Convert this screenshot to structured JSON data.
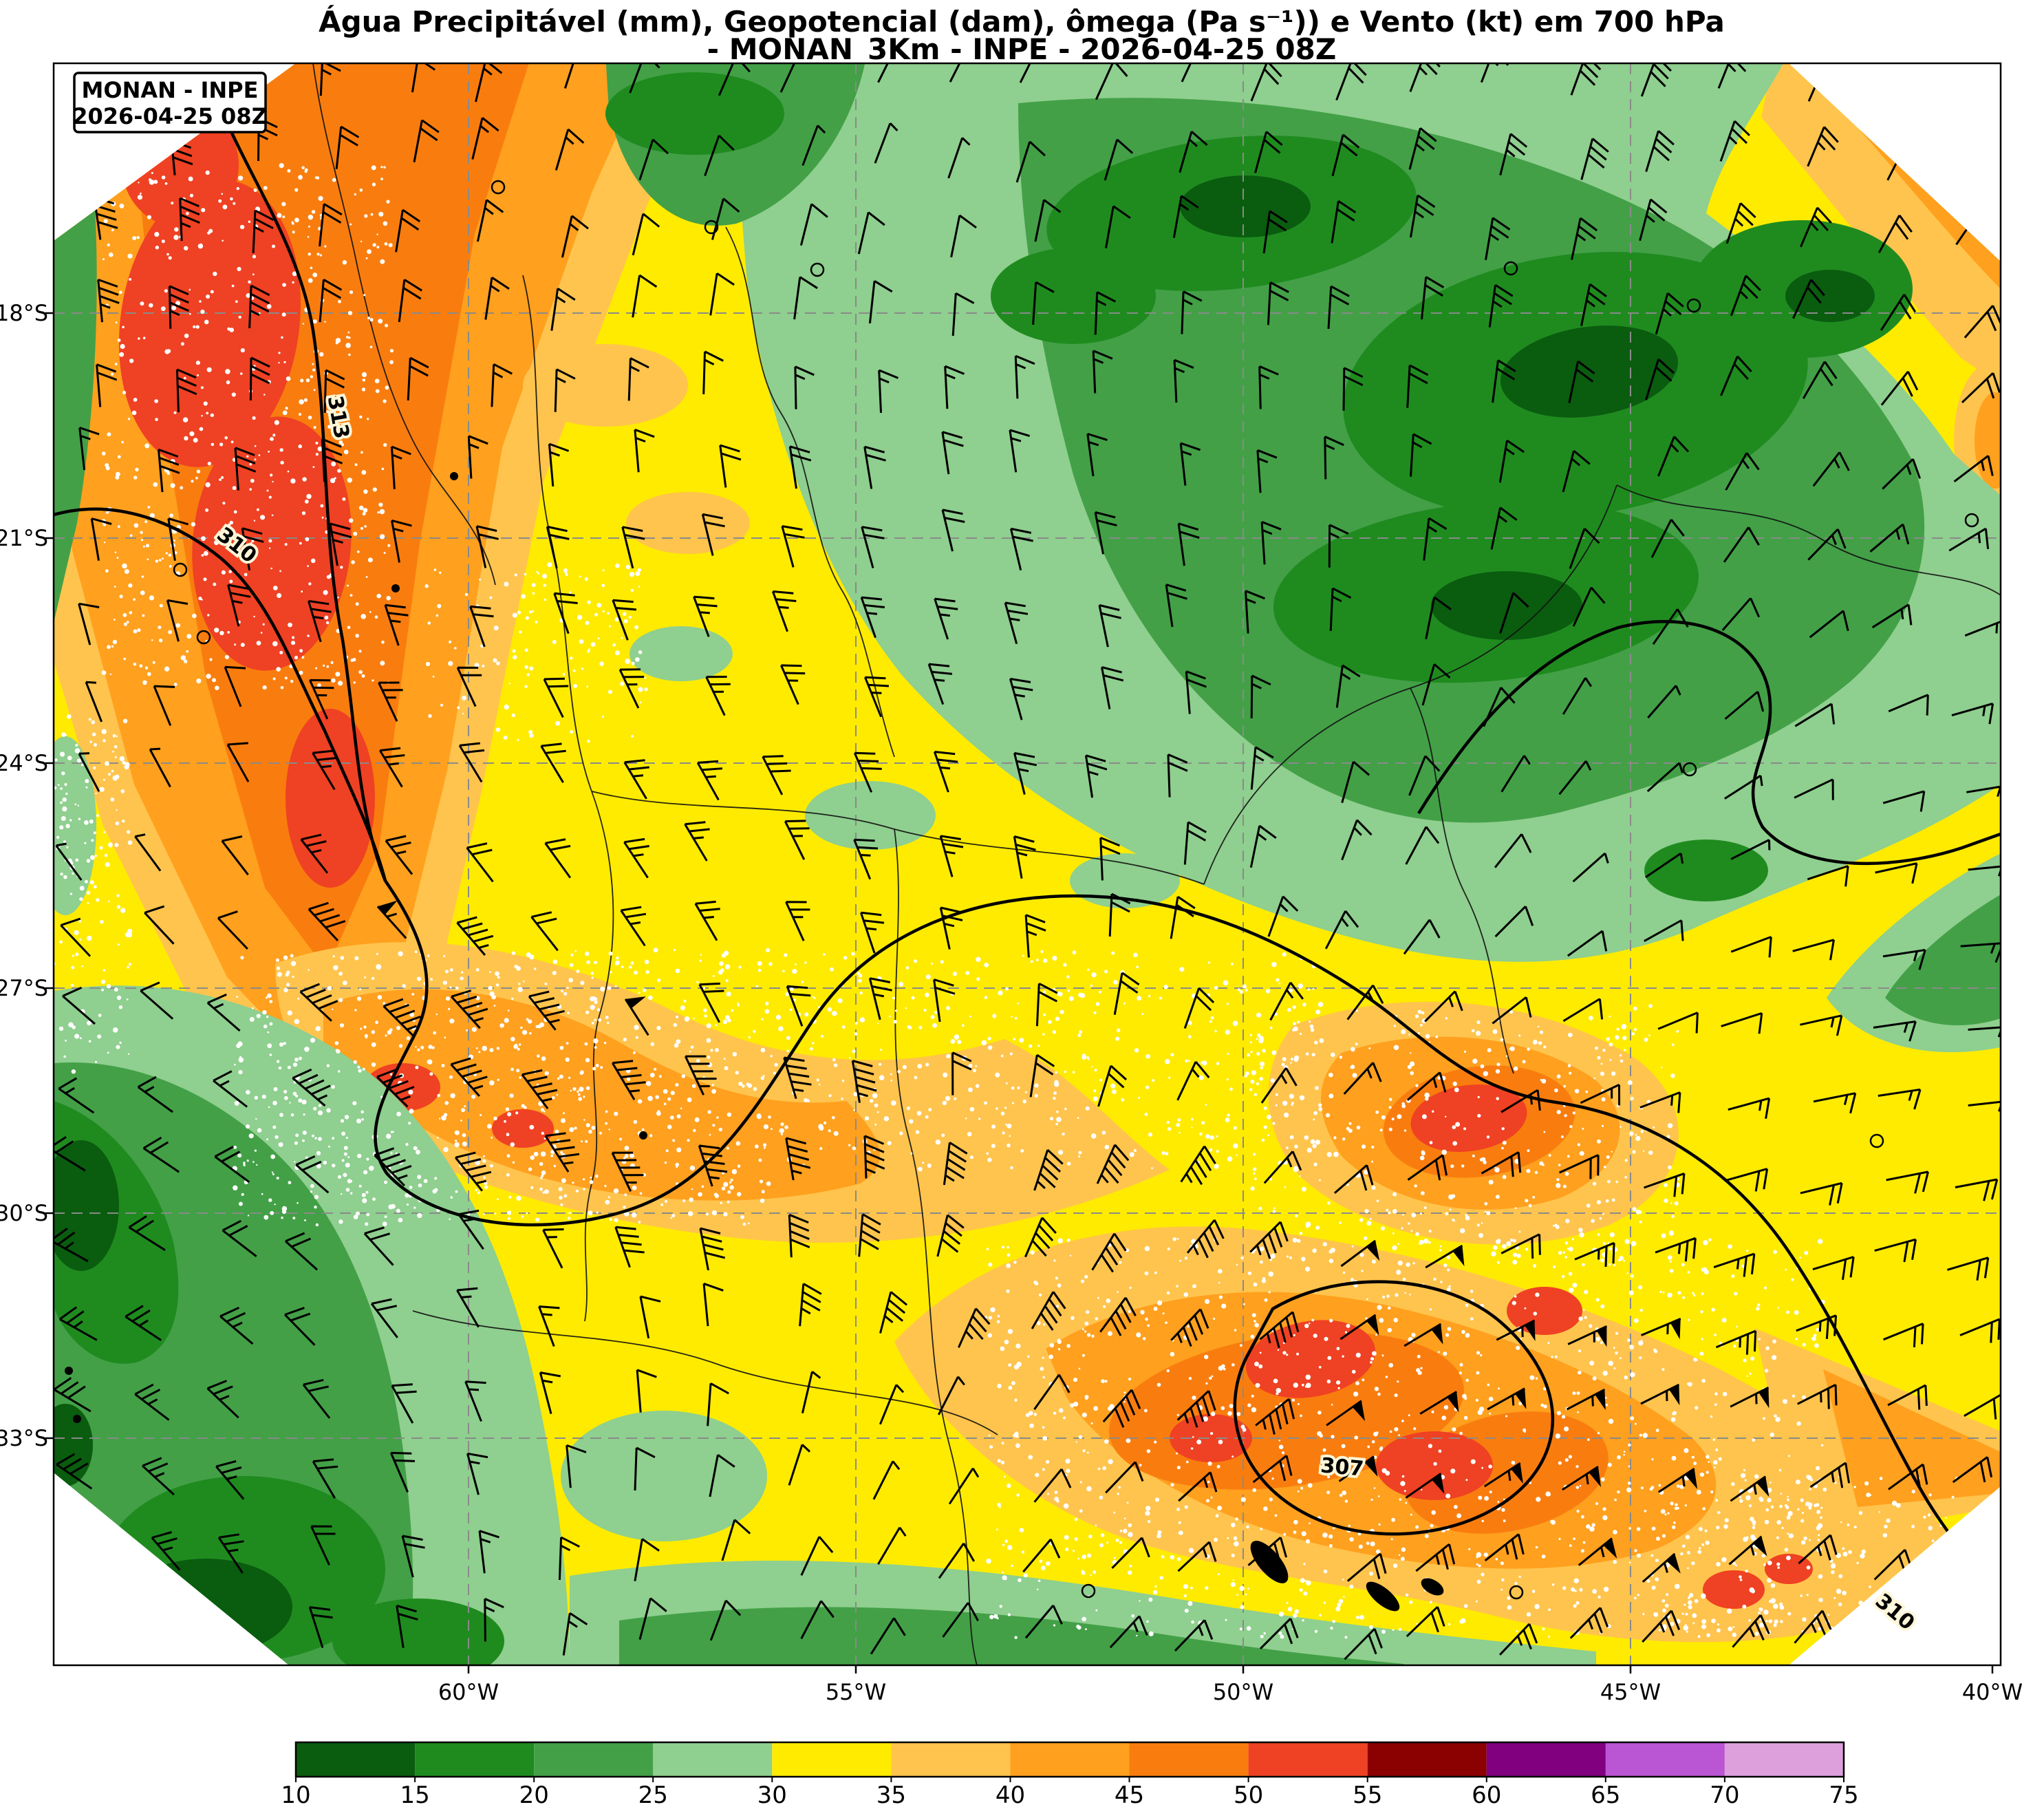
{
  "title": {
    "line1": "Água Precipitável (mm), Geopotencial (dam), ômega (Pa s⁻¹)) e Vento (kt) em 700 hPa",
    "line2": "- MONAN_3Km - INPE - 2026-04-25 08Z"
  },
  "info_box": {
    "line1": "MONAN - INPE",
    "line2": "2026-04-25 08Z"
  },
  "chart_data": {
    "type": "heatmap",
    "subtype": "filled-contour-weather-map",
    "title": "Água Precipitável (mm), Geopotencial (dam), ômega (Pa s⁻¹)) e Vento (kt) em 700 hPa - MONAN_3Km - INPE - 2026-04-25 08Z",
    "variables": [
      "Água Precipitável (mm)",
      "Geopotencial (dam)",
      "ômega (Pa s⁻¹)",
      "Vento (kt)"
    ],
    "pressure_level": "700 hPa",
    "model": "MONAN_3Km",
    "source": "INPE",
    "valid": "2026-04-25 08Z",
    "lat_ticks": [
      "18°S",
      "21°S",
      "24°S",
      "27°S",
      "30°S",
      "33°S"
    ],
    "lon_ticks": [
      "60°W",
      "55°W",
      "50°W",
      "45°W",
      "40°W"
    ],
    "colorbar": {
      "variable": "Água Precipitável (mm)",
      "levels": [
        10,
        15,
        20,
        25,
        30,
        35,
        40,
        45,
        50,
        55,
        60,
        65,
        70,
        75
      ],
      "colors": [
        "#0a5c0f",
        "#1f8b1f",
        "#43a047",
        "#8fcf8f",
        "#ffeb00",
        "#ffc44d",
        "#ffa01e",
        "#f97d0e",
        "#ef4123",
        "#8b0000",
        "#800080",
        "#ba55d3",
        "#dda0dd"
      ]
    },
    "geopotential_contour_labels": [
      "313",
      "310",
      "307",
      "310"
    ],
    "grid": "dashed",
    "legend_position": "bottom"
  }
}
